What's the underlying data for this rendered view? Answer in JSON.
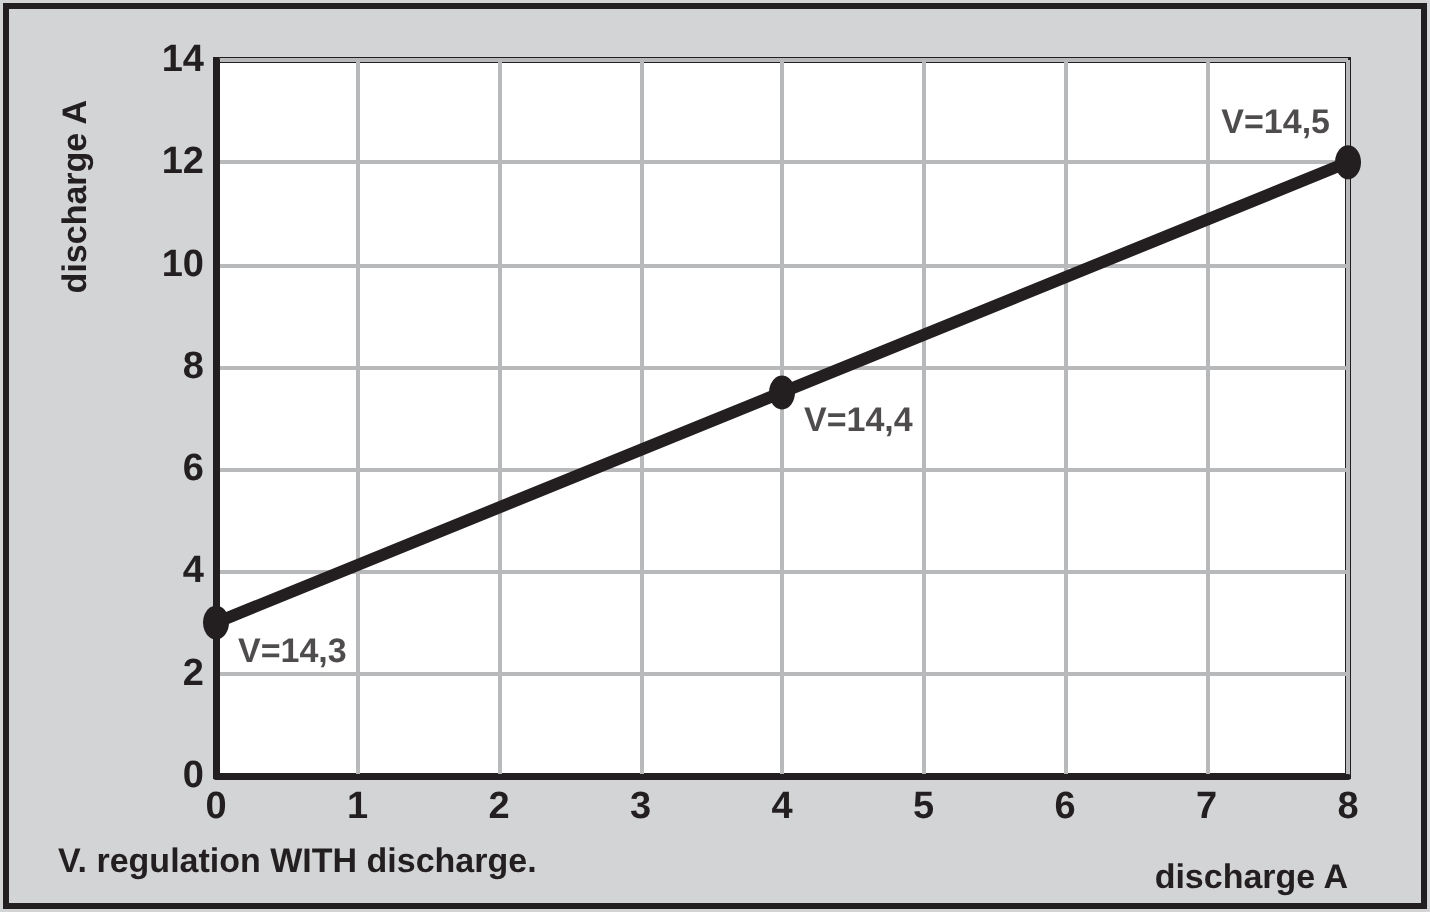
{
  "chart_data": {
    "type": "line",
    "title": "V. regulation WITH discharge.",
    "xlabel": "discharge A",
    "ylabel": "discharge A",
    "x": [
      0,
      4,
      8
    ],
    "series": [
      {
        "color": "#231f20",
        "values": [
          3,
          7.5,
          12
        ]
      }
    ],
    "annotations": [
      {
        "text": "V=14,3",
        "x": 0,
        "y": 3
      },
      {
        "text": "V=14,4",
        "x": 4,
        "y": 7.5
      },
      {
        "text": "V=14,5",
        "x": 8,
        "y": 12
      }
    ],
    "xlim": [
      0,
      8
    ],
    "xticks": [
      0,
      1,
      2,
      3,
      4,
      5,
      6,
      7,
      8
    ],
    "ylim": [
      0,
      14
    ],
    "yticks": [
      0,
      2,
      4,
      6,
      8,
      10,
      12,
      14
    ],
    "grid": true,
    "marker": "circle",
    "line_style": "solid"
  }
}
